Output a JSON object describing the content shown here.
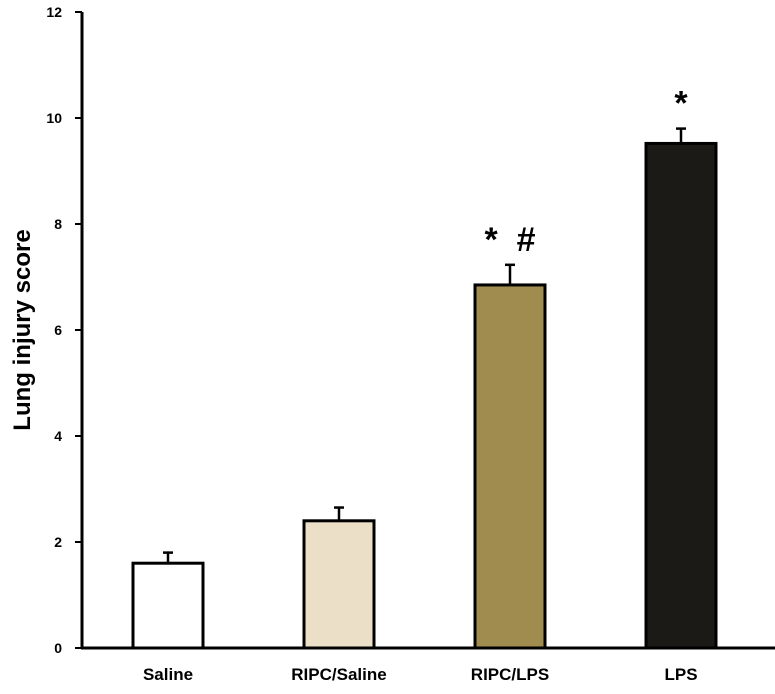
{
  "chart_data": {
    "type": "bar",
    "categories": [
      "Saline",
      "RIPC/Saline",
      "RIPC/LPS",
      "LPS"
    ],
    "values": [
      1.6,
      2.4,
      6.85,
      9.52
    ],
    "errors": [
      0.2,
      0.25,
      0.38,
      0.28
    ],
    "colors": [
      "#ffffff",
      "#ecdfc8",
      "#a08c4f",
      "#1c1a17"
    ],
    "annotations": [
      "",
      "",
      "* #",
      "*"
    ],
    "ylabel": "Lung injury score",
    "ylim": [
      0,
      12
    ],
    "yticks": [
      0,
      2,
      4,
      6,
      8,
      10,
      12
    ],
    "grid": false
  }
}
